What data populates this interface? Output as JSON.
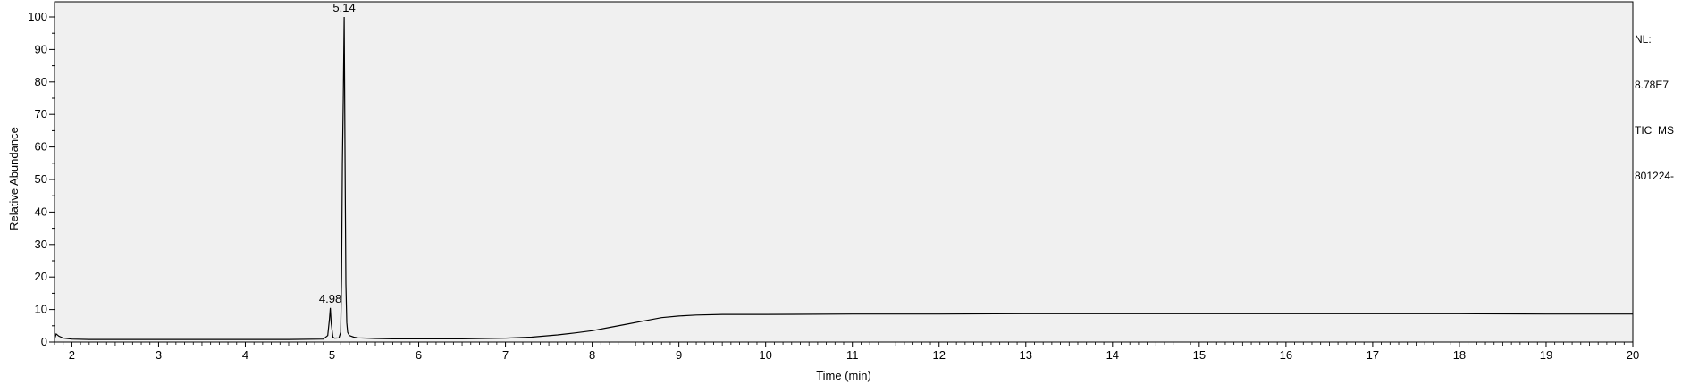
{
  "side_info": {
    "nl_label": "NL:",
    "nl_value": "8.78E7",
    "scan_filter": "TIC  MS",
    "file_name": "801224-"
  },
  "chart_data": {
    "type": "line",
    "title": "",
    "xlabel": "Time (min)",
    "ylabel": "Relative Abundance",
    "xlim": [
      1.8,
      20
    ],
    "ylim": [
      0,
      100
    ],
    "x_ticks": [
      2,
      3,
      4,
      5,
      6,
      7,
      8,
      9,
      10,
      11,
      12,
      13,
      14,
      15,
      16,
      17,
      18,
      19,
      20
    ],
    "y_ticks": [
      0,
      10,
      20,
      30,
      40,
      50,
      60,
      70,
      80,
      90,
      100
    ],
    "grid": false,
    "background": "#f0f0f0",
    "line_color": "#000000",
    "annotations": [
      {
        "x": 5.14,
        "y": 100,
        "text": "5.14"
      },
      {
        "x": 4.98,
        "y": 10.5,
        "text": "4.98"
      }
    ],
    "series": [
      {
        "x": [
          1.8,
          1.82,
          1.85,
          1.9,
          2.0,
          2.2,
          2.5,
          3.0,
          3.5,
          4.0,
          4.5,
          4.9,
          4.95,
          4.97,
          4.98,
          4.99,
          5.01,
          5.03,
          5.08,
          5.1,
          5.11,
          5.12,
          5.13,
          5.14,
          5.15,
          5.16,
          5.17,
          5.18,
          5.2,
          5.25,
          5.3,
          5.4,
          5.5,
          5.7,
          6.0,
          6.5,
          7.0,
          7.3,
          7.6,
          7.8,
          8.0,
          8.2,
          8.4,
          8.6,
          8.8,
          9.0,
          9.2,
          9.5,
          10.0,
          11.0,
          12.0,
          13.0,
          14.0,
          15.0,
          16.0,
          17.0,
          18.0,
          19.0,
          20.0
        ],
        "y": [
          0.8,
          2.5,
          1.8,
          1.2,
          0.9,
          0.8,
          0.8,
          0.8,
          0.8,
          0.8,
          0.8,
          0.9,
          2.0,
          7.0,
          10.5,
          6.0,
          1.5,
          1.2,
          1.3,
          3.0,
          20.0,
          55.0,
          75.0,
          100.0,
          55.0,
          18.0,
          6.0,
          3.0,
          2.0,
          1.5,
          1.3,
          1.2,
          1.1,
          1.0,
          1.0,
          1.0,
          1.2,
          1.5,
          2.2,
          2.8,
          3.5,
          4.5,
          5.5,
          6.5,
          7.5,
          8.0,
          8.3,
          8.5,
          8.5,
          8.6,
          8.6,
          8.7,
          8.7,
          8.7,
          8.7,
          8.7,
          8.7,
          8.6,
          8.6
        ]
      }
    ]
  }
}
